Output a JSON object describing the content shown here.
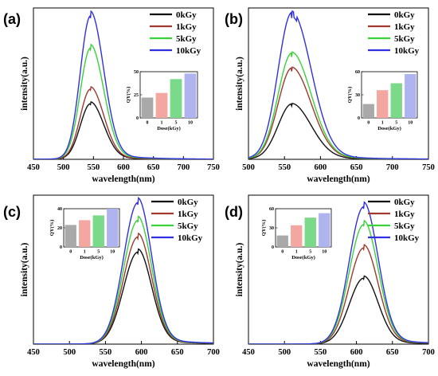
{
  "chart_data": [
    {
      "panel": "(a)",
      "type": "line",
      "xlabel": "wavelength(nm)",
      "ylabel": "intensity(a.u.)",
      "xlim": [
        450,
        750
      ],
      "xticks": [
        450,
        500,
        550,
        600,
        650,
        700,
        750
      ],
      "ylim": [
        0,
        1.05
      ],
      "y_ticks_shown": false,
      "legend_position": "top-right",
      "peak_nm": 545,
      "series": [
        {
          "name": "0kGy",
          "color": "#111111",
          "peak_relative": 0.38
        },
        {
          "name": "1kGy",
          "color": "#a0392e",
          "peak_relative": 0.48
        },
        {
          "name": "5kGy",
          "color": "#3ad13a",
          "peak_relative": 0.76
        },
        {
          "name": "10kGy",
          "color": "#3030e0",
          "peak_relative": 0.98
        }
      ],
      "inset": {
        "type": "bar",
        "categories": [
          "0",
          "1",
          "5",
          "10"
        ],
        "values": [
          22,
          27,
          42,
          48
        ],
        "ylim": [
          0,
          50
        ],
        "yticks": [
          0,
          25,
          50
        ],
        "ylabel": "QY(%)",
        "xlabel": "Dose(kGy)",
        "colors": [
          "#a9a9a9",
          "#f4a6a0",
          "#7bd98a",
          "#b0b4ee"
        ]
      }
    },
    {
      "panel": "(b)",
      "type": "line",
      "xlabel": "wavelength(nm)",
      "ylabel": "intensity(a.u.)",
      "xlim": [
        500,
        750
      ],
      "xticks": [
        500,
        550,
        600,
        650,
        700,
        750
      ],
      "ylim": [
        0,
        1.05
      ],
      "y_ticks_shown": false,
      "legend_position": "top-right",
      "peak_nm": 560,
      "series": [
        {
          "name": "0kGy",
          "color": "#111111",
          "peak_relative": 0.37
        },
        {
          "name": "1kGy",
          "color": "#a0392e",
          "peak_relative": 0.61
        },
        {
          "name": "5kGy",
          "color": "#3ad13a",
          "peak_relative": 0.71
        },
        {
          "name": "10kGy",
          "color": "#3030e0",
          "peak_relative": 0.98
        }
      ],
      "inset": {
        "type": "bar",
        "categories": [
          "0",
          "1",
          "5",
          "10"
        ],
        "values": [
          18,
          36,
          45,
          57
        ],
        "ylim": [
          0,
          60
        ],
        "yticks": [
          0,
          30,
          60
        ],
        "ylabel": "QY(%)",
        "xlabel": "Dose(kGy)",
        "colors": [
          "#a9a9a9",
          "#f4a6a0",
          "#7bd98a",
          "#b0b4ee"
        ]
      }
    },
    {
      "panel": "(c)",
      "type": "line",
      "xlabel": "wavelength(nm)",
      "ylabel": "intensity(a.u.)",
      "xlim": [
        450,
        700
      ],
      "xticks": [
        450,
        500,
        550,
        600,
        650,
        700
      ],
      "ylim": [
        0,
        1.1
      ],
      "y_ticks_shown": false,
      "legend_position": "top-right",
      "peak_nm": 595,
      "series": [
        {
          "name": "0kGy",
          "color": "#111111",
          "peak_relative": 0.67
        },
        {
          "name": "1kGy",
          "color": "#a0392e",
          "peak_relative": 0.78
        },
        {
          "name": "5kGy",
          "color": "#3ad13a",
          "peak_relative": 0.9
        },
        {
          "name": "10kGy",
          "color": "#3030e0",
          "peak_relative": 1.03
        }
      ],
      "inset": {
        "type": "bar",
        "categories": [
          "0",
          "1",
          "5",
          "10"
        ],
        "values": [
          23,
          28,
          33,
          40
        ],
        "ylim": [
          0,
          40
        ],
        "yticks": [
          0,
          20,
          40
        ],
        "ylabel": "QY(%)",
        "xlabel": "Dose(kGy)",
        "colors": [
          "#a9a9a9",
          "#f4a6a0",
          "#7bd98a",
          "#b0b4ee"
        ]
      }
    },
    {
      "panel": "(d)",
      "type": "line",
      "xlabel": "wavelength(nm)",
      "ylabel": "intensity(a.u.)",
      "xlim": [
        450,
        700
      ],
      "xticks": [
        450,
        500,
        550,
        600,
        650,
        700
      ],
      "ylim": [
        0,
        1.1
      ],
      "y_ticks_shown": false,
      "legend_position": "top-right",
      "peak_nm": 610,
      "series": [
        {
          "name": "0kGy",
          "color": "#111111",
          "peak_relative": 0.48
        },
        {
          "name": "1kGy",
          "color": "#a0392e",
          "peak_relative": 0.7
        },
        {
          "name": "5kGy",
          "color": "#3ad13a",
          "peak_relative": 0.87
        },
        {
          "name": "10kGy",
          "color": "#3030e0",
          "peak_relative": 1.0
        }
      ],
      "inset": {
        "type": "bar",
        "categories": [
          "0",
          "1",
          "5",
          "10"
        ],
        "values": [
          18,
          34,
          46,
          53
        ],
        "ylim": [
          0,
          60
        ],
        "yticks": [
          0,
          30,
          60
        ],
        "ylabel": "QY(%)",
        "xlabel": "Dose(kGy)",
        "colors": [
          "#a9a9a9",
          "#f4a6a0",
          "#7bd98a",
          "#b0b4ee"
        ]
      }
    }
  ]
}
